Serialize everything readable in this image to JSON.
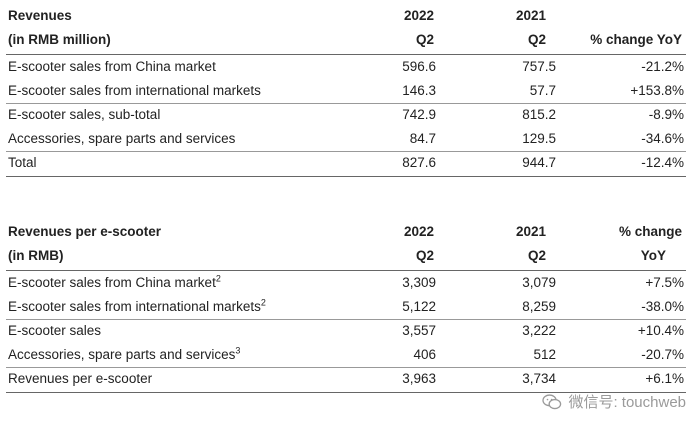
{
  "table1": {
    "header": {
      "label_line1": "Revenues",
      "label_line2": "(in RMB million)",
      "col1_year": "2022",
      "col1_q": "Q2",
      "col2_year": "2021",
      "col2_q": "Q2",
      "col3_line1": "",
      "col3_line2": "% change YoY"
    },
    "rows": [
      {
        "label": "E-scooter sales from China market",
        "sup": "",
        "v2022": "596.6",
        "v2021": "757.5",
        "change": "-21.2%"
      },
      {
        "label": "E-scooter sales from international markets",
        "sup": "",
        "v2022": "146.3",
        "v2021": "57.7",
        "change": "+153.8%"
      },
      {
        "label": "E-scooter sales, sub-total",
        "sup": "",
        "v2022": "742.9",
        "v2021": "815.2",
        "change": "-8.9%"
      },
      {
        "label": "Accessories, spare parts and services",
        "sup": "",
        "v2022": "84.7",
        "v2021": "129.5",
        "change": "-34.6%"
      },
      {
        "label": "Total",
        "sup": "",
        "v2022": "827.6",
        "v2021": "944.7",
        "change": "-12.4%"
      }
    ]
  },
  "table2": {
    "header": {
      "label_line1": "Revenues per e-scooter",
      "label_line2": "(in RMB)",
      "col1_year": "2022",
      "col1_q": "Q2",
      "col2_year": "2021",
      "col2_q": "Q2",
      "col3_line1": "% change",
      "col3_line2": "YoY"
    },
    "rows": [
      {
        "label": "E-scooter sales from China market",
        "sup": "2",
        "v2022": "3,309",
        "v2021": "3,079",
        "change": "+7.5%"
      },
      {
        "label": "E-scooter sales from international markets",
        "sup": "2",
        "v2022": "5,122",
        "v2021": "8,259",
        "change": "-38.0%"
      },
      {
        "label": "E-scooter sales",
        "sup": "",
        "v2022": "3,557",
        "v2021": "3,222",
        "change": "+10.4%"
      },
      {
        "label": "Accessories, spare parts and services",
        "sup": "3",
        "v2022": "406",
        "v2021": "512",
        "change": "-20.7%"
      },
      {
        "label": "Revenues per e-scooter",
        "sup": "",
        "v2022": "3,963",
        "v2021": "3,734",
        "change": "+6.1%"
      }
    ]
  },
  "watermark": {
    "text": "微信号: touchweb",
    "icon": "wechat-icon"
  }
}
